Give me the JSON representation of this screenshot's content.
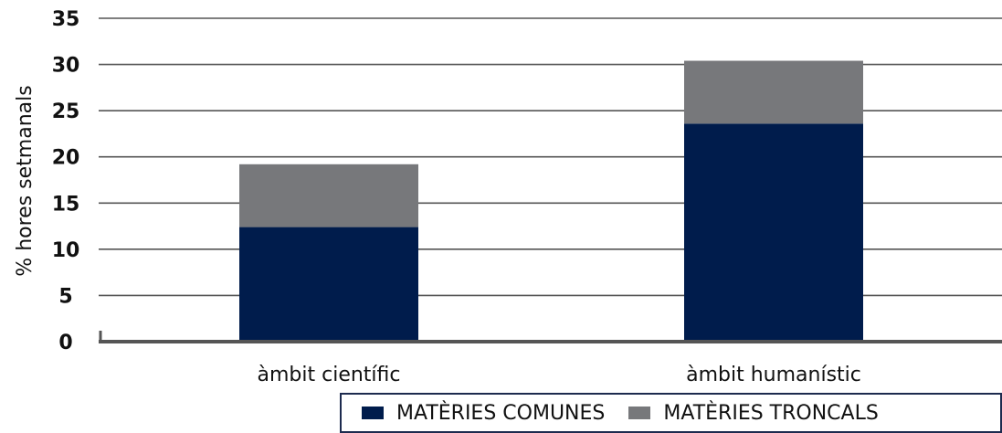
{
  "chart_data": {
    "type": "bar",
    "stacked": true,
    "categories": [
      "àmbit científic",
      "àmbit humanístic"
    ],
    "series": [
      {
        "name": "MATÈRIES COMUNES",
        "values": [
          12.4,
          23.6
        ]
      },
      {
        "name": "MATÈRIES TRONCALS",
        "values": [
          6.8,
          6.8
        ]
      }
    ],
    "ylabel": "% hores setmanals",
    "xlabel": "",
    "ylim": [
      0,
      35
    ],
    "yticks": [
      "0",
      "5",
      "10",
      "15",
      "20",
      "25",
      "30",
      "35"
    ],
    "grid": true,
    "legend_position": "bottom-right",
    "colors": {
      "MATÈRIES COMUNES": "#001c4c",
      "MATÈRIES TRONCALS": "#77787b",
      "grid": "#555555",
      "axis": "#555555"
    }
  }
}
